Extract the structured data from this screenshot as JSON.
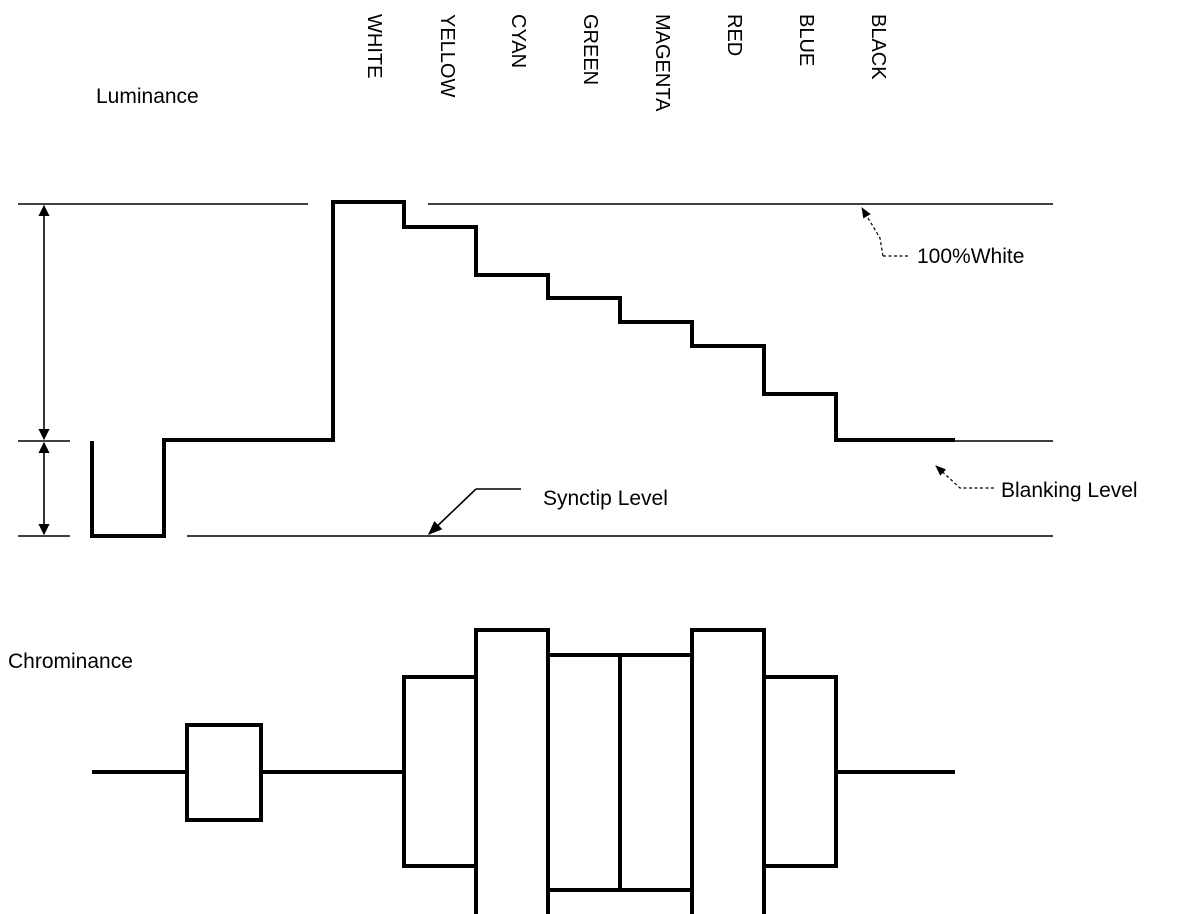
{
  "luminance_label": "Luminance",
  "chrominance_label": "Chrominance",
  "bars": [
    {
      "label": "WHITE"
    },
    {
      "label": "YELLOW"
    },
    {
      "label": "CYAN"
    },
    {
      "label": "GREEN"
    },
    {
      "label": "MAGENTA"
    },
    {
      "label": "RED"
    },
    {
      "label": "BLUE"
    },
    {
      "label": "BLACK"
    }
  ],
  "annotations": {
    "white_level": "100%White",
    "blanking_level": "Blanking Level",
    "synctip_level": "Synctip Level"
  }
}
